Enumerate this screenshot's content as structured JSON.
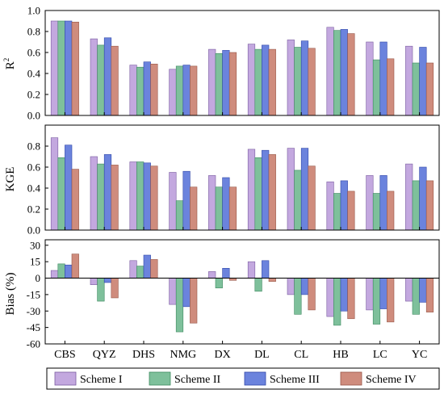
{
  "chart_data": [
    {
      "type": "bar",
      "ylabel": "R",
      "ylabel_sup": "2",
      "ylim": [
        0.0,
        1.0
      ],
      "yticks": [
        0.0,
        0.2,
        0.4,
        0.6,
        0.8,
        1.0
      ],
      "ytick_labels": [
        "0.0",
        "0.2",
        "0.4",
        "0.6",
        "0.8",
        "1.0"
      ],
      "grid": false,
      "series": [
        {
          "values": [
            0.9,
            0.73,
            0.48,
            0.44,
            0.63,
            0.68,
            0.72,
            0.84,
            0.7,
            0.66
          ]
        },
        {
          "values": [
            0.9,
            0.67,
            0.46,
            0.47,
            0.59,
            0.63,
            0.65,
            0.81,
            0.53,
            0.5
          ]
        },
        {
          "values": [
            0.9,
            0.74,
            0.51,
            0.48,
            0.62,
            0.67,
            0.71,
            0.82,
            0.7,
            0.65
          ]
        },
        {
          "values": [
            0.89,
            0.66,
            0.49,
            0.47,
            0.6,
            0.63,
            0.64,
            0.78,
            0.54,
            0.5
          ]
        }
      ]
    },
    {
      "type": "bar",
      "ylabel": "KGE",
      "ylim": [
        0.0,
        1.0
      ],
      "yticks": [
        0.0,
        0.2,
        0.4,
        0.6,
        0.8
      ],
      "ytick_labels": [
        "0.0",
        "0.2",
        "0.4",
        "0.6",
        "0.8"
      ],
      "grid": false,
      "series": [
        {
          "values": [
            0.88,
            0.7,
            0.65,
            0.55,
            0.52,
            0.77,
            0.78,
            0.46,
            0.52,
            0.63
          ]
        },
        {
          "values": [
            0.69,
            0.63,
            0.65,
            0.28,
            0.41,
            0.69,
            0.57,
            0.35,
            0.35,
            0.47
          ]
        },
        {
          "values": [
            0.81,
            0.72,
            0.64,
            0.56,
            0.5,
            0.76,
            0.78,
            0.47,
            0.52,
            0.6
          ]
        },
        {
          "values": [
            0.58,
            0.62,
            0.61,
            0.41,
            0.41,
            0.72,
            0.61,
            0.37,
            0.37,
            0.47
          ]
        }
      ]
    },
    {
      "type": "bar",
      "ylabel": "Bias (%)",
      "ylim": [
        -60,
        35
      ],
      "yticks": [
        30,
        15,
        0,
        -15,
        -30,
        -45,
        -60
      ],
      "ytick_labels": [
        "30",
        "15",
        "0",
        "-15",
        "-30",
        "-45",
        "-60"
      ],
      "grid": false,
      "series": [
        {
          "values": [
            7,
            -6,
            16,
            -24,
            6,
            15,
            -15,
            -35,
            -29,
            -21
          ]
        },
        {
          "values": [
            13,
            -21,
            11,
            -49,
            -9,
            -12,
            -33,
            -43,
            -42,
            -33
          ]
        },
        {
          "values": [
            12,
            -4,
            21,
            -26,
            9,
            16,
            -15,
            -30,
            -28,
            -22
          ]
        },
        {
          "values": [
            22,
            -18,
            17,
            -41,
            -2,
            -3,
            -29,
            -37,
            -40,
            -31
          ]
        }
      ]
    }
  ],
  "categories": [
    "CBS",
    "QYZ",
    "DHS",
    "NMG",
    "DX",
    "DL",
    "CL",
    "HB",
    "LC",
    "YC"
  ],
  "legend": {
    "placement": "bottom",
    "entries": [
      "Scheme I",
      "Scheme II",
      "Scheme III",
      "Scheme IV"
    ]
  },
  "colors": [
    "#c3a8df",
    "#7ec09b",
    "#6b83dd",
    "#cf8c7d"
  ],
  "stroke_colors": [
    "#7a5ca0",
    "#3e8a60",
    "#3148a8",
    "#985748"
  ]
}
